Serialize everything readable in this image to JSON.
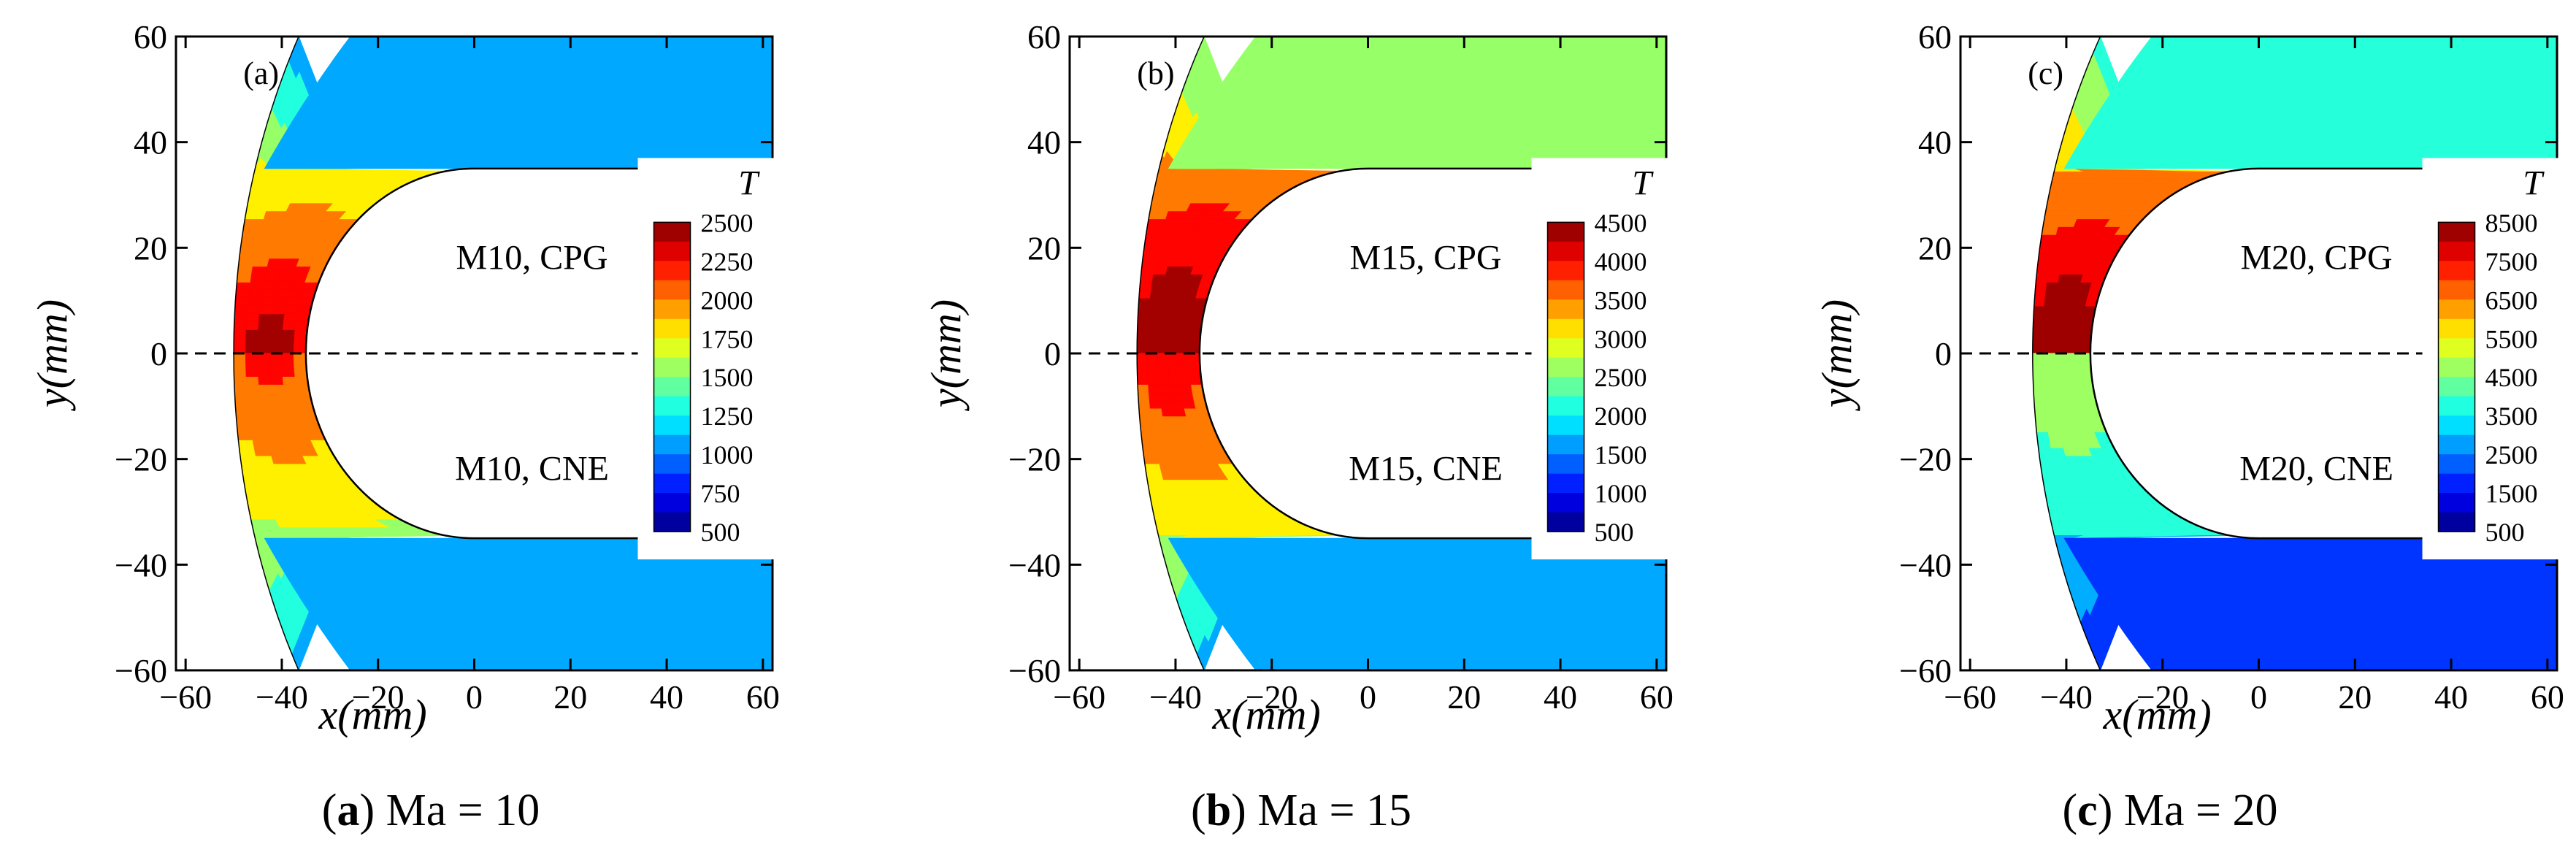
{
  "figure": {
    "captions": [
      {
        "open": "(",
        "letter": "a",
        "close": ")",
        "text": " Ma = 10"
      },
      {
        "open": "(",
        "letter": "b",
        "close": ")",
        "text": " Ma = 15"
      },
      {
        "open": "(",
        "letter": "c",
        "close": ")",
        "text": " Ma = 20"
      }
    ]
  },
  "chart_data": [
    {
      "type": "heatmap",
      "panel_label": "(a)",
      "mach": 10,
      "xlabel": "x(mm)",
      "ylabel": "y(mm)",
      "xlim": [
        -62,
        62
      ],
      "ylim": [
        -60,
        60
      ],
      "xticks": [
        -60,
        -40,
        -20,
        0,
        20,
        40,
        60
      ],
      "yticks": [
        -60,
        -40,
        -20,
        0,
        20,
        40,
        60
      ],
      "xtick_labels": [
        "−60",
        "−40",
        "−20",
        "0",
        "20",
        "40",
        "60"
      ],
      "ytick_labels": [
        "−60",
        "−40",
        "−20",
        "0",
        "20",
        "40",
        "60"
      ],
      "annotations": {
        "upper": "M10, CPG",
        "lower": "M10, CNE"
      },
      "colorbar": {
        "title": "T",
        "levels": [
          500,
          750,
          1000,
          1250,
          1500,
          1750,
          2000,
          2250,
          2500
        ],
        "tick_labels": [
          "2500",
          "2250",
          "2000",
          "1750",
          "1500",
          "1250",
          "1000",
          "750",
          "500"
        ],
        "vmin": 500,
        "vmax": 2650
      },
      "geometry": {
        "nose_radius_mm": 35,
        "shock_standoff_mm": 50,
        "shock_radius_mm": 140
      },
      "upper": {
        "stagnation_T": 2450,
        "exit_T": 1150
      },
      "lower": {
        "stagnation_T": 2200,
        "exit_T": 1200
      }
    },
    {
      "type": "heatmap",
      "panel_label": "(b)",
      "mach": 15,
      "xlabel": "x(mm)",
      "ylabel": "y(mm)",
      "xlim": [
        -62,
        62
      ],
      "ylim": [
        -60,
        60
      ],
      "xticks": [
        -60,
        -40,
        -20,
        0,
        20,
        40,
        60
      ],
      "yticks": [
        -60,
        -40,
        -20,
        0,
        20,
        40,
        60
      ],
      "xtick_labels": [
        "−60",
        "−40",
        "−20",
        "0",
        "20",
        "40",
        "60"
      ],
      "ytick_labels": [
        "−60",
        "−40",
        "−20",
        "0",
        "20",
        "40",
        "60"
      ],
      "annotations": {
        "upper": "M15, CPG",
        "lower": "M15, CNE"
      },
      "colorbar": {
        "title": "T",
        "levels": [
          500,
          1000,
          1500,
          2000,
          2500,
          3000,
          3500,
          4000,
          4500
        ],
        "tick_labels": [
          "4500",
          "4000",
          "3500",
          "3000",
          "2500",
          "2000",
          "1500",
          "1000",
          "500"
        ],
        "vmin": 500,
        "vmax": 4800
      },
      "geometry": {
        "nose_radius_mm": 35,
        "shock_standoff_mm": 48,
        "shock_radius_mm": 136
      },
      "upper": {
        "stagnation_T": 4750,
        "exit_T": 2550
      },
      "lower": {
        "stagnation_T": 4100,
        "exit_T": 1900
      }
    },
    {
      "type": "heatmap",
      "panel_label": "(c)",
      "mach": 20,
      "xlabel": "x(mm)",
      "ylabel": "y(mm)",
      "xlim": [
        -62,
        62
      ],
      "ylim": [
        -60,
        60
      ],
      "xticks": [
        -60,
        -40,
        -20,
        0,
        20,
        40,
        60
      ],
      "yticks": [
        -60,
        -40,
        -20,
        0,
        20,
        40,
        60
      ],
      "xtick_labels": [
        "−60",
        "−40",
        "−20",
        "0",
        "20",
        "40",
        "60"
      ],
      "ytick_labels": [
        "−60",
        "−40",
        "−20",
        "0",
        "20",
        "40",
        "60"
      ],
      "annotations": {
        "upper": "M20, CPG",
        "lower": "M20, CNE"
      },
      "colorbar": {
        "title": "T",
        "levels": [
          500,
          1500,
          2500,
          3500,
          4500,
          5500,
          6500,
          7500,
          8500
        ],
        "tick_labels": [
          "8500",
          "7500",
          "6500",
          "5500",
          "4500",
          "3500",
          "2500",
          "1500",
          "500"
        ],
        "vmin": 500,
        "vmax": 9000
      },
      "geometry": {
        "nose_radius_mm": 35,
        "shock_standoff_mm": 47,
        "shock_radius_mm": 135
      },
      "upper": {
        "stagnation_T": 8900,
        "exit_T": 4200
      },
      "lower": {
        "stagnation_T": 5000,
        "exit_T": 2000
      }
    }
  ]
}
